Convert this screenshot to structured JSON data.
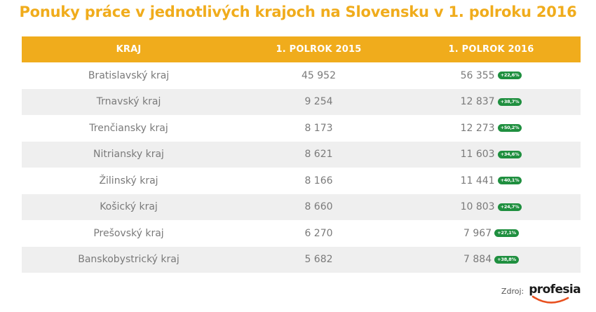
{
  "title": "Ponuky práce v jednotlivých krajoch na Slovensku v 1. polroku 2016",
  "source": {
    "label": "Zdroj:",
    "logo_text": "profesia"
  },
  "colors": {
    "accent": "#f0ac1c",
    "badge": "#1f8f3f",
    "logo_arc": "#e8501f"
  },
  "chart_data": {
    "type": "table",
    "title": "Ponuky práce v jednotlivých krajoch na Slovensku v 1. polroku 2016",
    "columns": [
      "KRAJ",
      "1. POLROK 2015",
      "1. POLROK 2016"
    ],
    "rows": [
      {
        "region": "Bratislavský kraj",
        "h2015": "45 952",
        "h2016": "56 355",
        "change": "+22,6%"
      },
      {
        "region": "Trnavský kraj",
        "h2015": "9 254",
        "h2016": "12 837",
        "change": "+38,7%"
      },
      {
        "region": "Trenčiansky kraj",
        "h2015": "8 173",
        "h2016": "12 273",
        "change": "+50,2%"
      },
      {
        "region": "Nitriansky kraj",
        "h2015": "8 621",
        "h2016": "11 603",
        "change": "+34,6%"
      },
      {
        "region": "Žilinský kraj",
        "h2015": "8 166",
        "h2016": "11 441",
        "change": "+40,1%"
      },
      {
        "region": "Košický kraj",
        "h2015": "8 660",
        "h2016": "10 803",
        "change": "+24,7%"
      },
      {
        "region": "Prešovský kraj",
        "h2015": "6 270",
        "h2016": "7 967",
        "change": "+27,1%"
      },
      {
        "region": "Banskobystrický kraj",
        "h2015": "5 682",
        "h2016": "7 884",
        "change": "+38,8%"
      }
    ]
  }
}
